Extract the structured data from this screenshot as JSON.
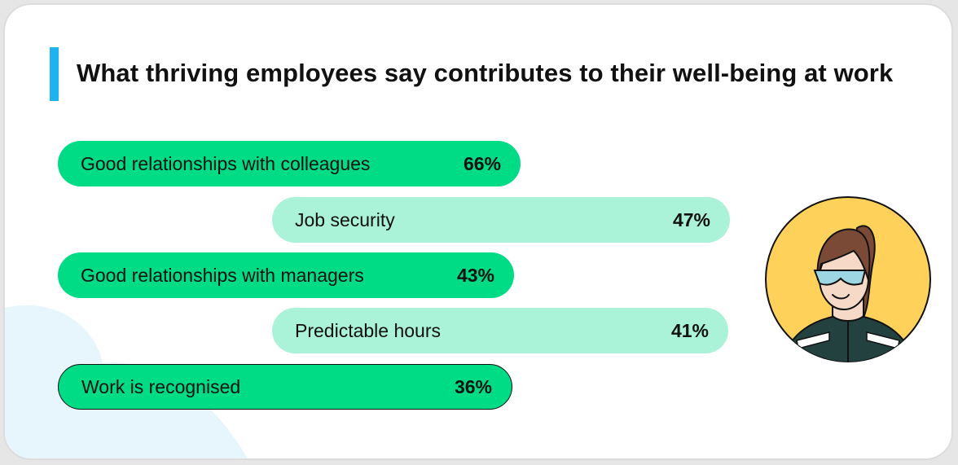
{
  "chart_data": {
    "type": "bar",
    "title": "What thriving employees say contributes to their well-being at work",
    "xlabel": "",
    "ylabel": "",
    "categories": [
      "Good relationships with colleagues",
      "Job security",
      "Good relationships with managers",
      "Predictable hours",
      "Work is recognised"
    ],
    "values": [
      66,
      47,
      43,
      41,
      36
    ],
    "value_labels": [
      "66%",
      "47%",
      "43%",
      "41%",
      "36%"
    ],
    "unit": "%",
    "orientation": "horizontal",
    "grid": false
  },
  "colors": {
    "accent_bar": "#1fb2ef",
    "bar_strong": "#00db86",
    "bar_light": "#aaf2d8",
    "avatar_bg": "#fed25a",
    "background_blob": "#e7f5fd"
  }
}
